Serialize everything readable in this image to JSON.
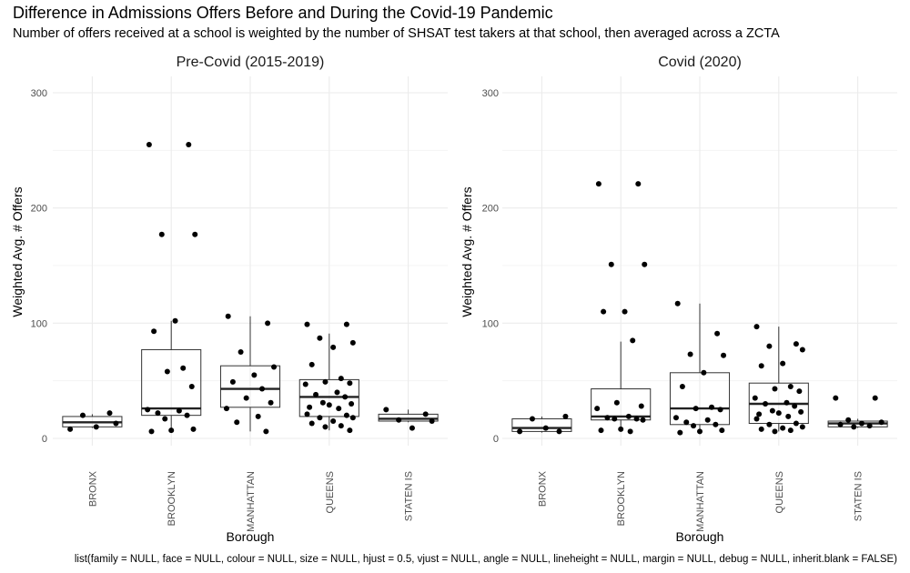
{
  "header": {
    "title": "Difference in Admissions Offers Before and During the Covid-19 Pandemic",
    "subtitle": "Number of offers received at a school is weighted by the number of SHSAT test takers at that school, then averaged across a ZCTA"
  },
  "caption": "list(family = NULL, face = NULL, colour = NULL, size = NULL, hjust = 0.5, vjust = NULL, angle = NULL, lineheight = NULL, margin = NULL, debug = NULL, inherit.blank = FALSE)",
  "chart_data": [
    {
      "type": "box",
      "title": "Pre-Covid (2015-2019)",
      "xlabel": "Borough",
      "ylabel": "Weighted Avg. # Offers",
      "ylim": [
        0,
        300
      ],
      "yticks": [
        0,
        100,
        200,
        300
      ],
      "categories": [
        "BRONX",
        "BROOKLYN",
        "MANHATTAN",
        "QUEENS",
        "STATEN IS"
      ],
      "boxes": [
        {
          "category": "BRONX",
          "min": 9,
          "q1": 10,
          "median": 14,
          "q3": 19,
          "max": 21
        },
        {
          "category": "BROOKLYN",
          "min": 7,
          "q1": 20,
          "median": 26,
          "q3": 77,
          "max": 102
        },
        {
          "category": "MANHATTAN",
          "min": 6,
          "q1": 27,
          "median": 43,
          "q3": 63,
          "max": 106
        },
        {
          "category": "QUEENS",
          "min": 7,
          "q1": 19,
          "median": 36,
          "q3": 51,
          "max": 91
        },
        {
          "category": "STATEN IS",
          "min": 14,
          "q1": 15,
          "median": 17,
          "q3": 21,
          "max": 25
        }
      ],
      "points": [
        {
          "category": "BRONX",
          "y": [
            8,
            22,
            20,
            13,
            10
          ]
        },
        {
          "category": "BROOKLYN",
          "y": [
            255,
            255,
            177,
            177,
            102,
            93,
            61,
            58,
            45,
            25,
            24,
            22,
            20,
            17,
            8,
            7,
            6
          ]
        },
        {
          "category": "MANHATTAN",
          "y": [
            106,
            100,
            75,
            62,
            55,
            49,
            43,
            35,
            31,
            26,
            19,
            14,
            6
          ]
        },
        {
          "category": "QUEENS",
          "y": [
            99,
            99,
            87,
            83,
            79,
            64,
            52,
            49,
            48,
            47,
            40,
            38,
            36,
            31,
            30,
            29,
            27,
            26,
            21,
            20,
            18,
            18,
            15,
            13,
            11,
            10,
            7
          ]
        },
        {
          "category": "STATEN IS",
          "y": [
            25,
            21,
            16,
            15,
            9
          ]
        }
      ]
    },
    {
      "type": "box",
      "title": "Covid (2020)",
      "xlabel": "Borough",
      "ylabel": "Weighted Avg. # Offers",
      "ylim": [
        0,
        300
      ],
      "yticks": [
        0,
        100,
        200,
        300
      ],
      "categories": [
        "BRONX",
        "BROOKLYN",
        "MANHATTAN",
        "QUEENS",
        "STATEN IS"
      ],
      "boxes": [
        {
          "category": "BRONX",
          "min": 5,
          "q1": 6,
          "median": 9,
          "q3": 17,
          "max": 19
        },
        {
          "category": "BROOKLYN",
          "min": 6,
          "q1": 16,
          "median": 19,
          "q3": 43,
          "max": 84
        },
        {
          "category": "MANHATTAN",
          "min": 5,
          "q1": 12,
          "median": 26,
          "q3": 57,
          "max": 117
        },
        {
          "category": "QUEENS",
          "min": 6,
          "q1": 13,
          "median": 30,
          "q3": 48,
          "max": 97
        },
        {
          "category": "STATEN IS",
          "min": 9,
          "q1": 10,
          "median": 13,
          "q3": 15,
          "max": 17
        }
      ],
      "points": [
        {
          "category": "BRONX",
          "y": [
            6,
            6,
            17,
            19,
            9
          ]
        },
        {
          "category": "BROOKLYN",
          "y": [
            221,
            221,
            151,
            151,
            110,
            110,
            85,
            31,
            28,
            26,
            19,
            18,
            17,
            17,
            16,
            8,
            7,
            6
          ]
        },
        {
          "category": "MANHATTAN",
          "y": [
            117,
            91,
            73,
            72,
            57,
            45,
            27,
            26,
            25,
            18,
            16,
            14,
            12,
            11,
            7,
            6,
            5
          ]
        },
        {
          "category": "QUEENS",
          "y": [
            97,
            82,
            80,
            77,
            65,
            63,
            45,
            43,
            41,
            35,
            31,
            30,
            28,
            24,
            23,
            22,
            21,
            19,
            17,
            13,
            12,
            10,
            9,
            8,
            7,
            6
          ]
        },
        {
          "category": "STATEN IS",
          "y": [
            35,
            35,
            16,
            14,
            13,
            12,
            11,
            10
          ]
        }
      ]
    }
  ]
}
